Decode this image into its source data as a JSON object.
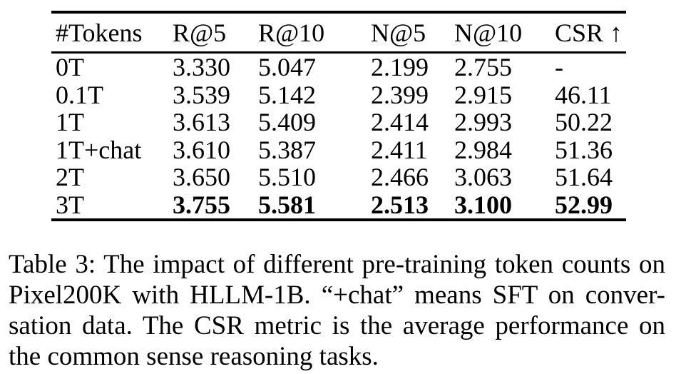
{
  "table": {
    "headers": [
      "#Tokens",
      "R@5",
      "R@10",
      "N@5",
      "N@10",
      "CSR ↑"
    ],
    "rows": [
      {
        "cells": [
          "0T",
          "3.330",
          "5.047",
          "2.199",
          "2.755",
          "-"
        ]
      },
      {
        "cells": [
          "0.1T",
          "3.539",
          "5.142",
          "2.399",
          "2.915",
          "46.11"
        ]
      },
      {
        "cells": [
          "1T",
          "3.613",
          "5.409",
          "2.414",
          "2.993",
          "50.22"
        ]
      },
      {
        "cells": [
          "1T+chat",
          "3.610",
          "5.387",
          "2.411",
          "2.984",
          "51.36"
        ]
      },
      {
        "cells": [
          "2T",
          "3.650",
          "5.510",
          "2.466",
          "3.063",
          "51.64"
        ]
      },
      {
        "cells": [
          "3T",
          "3.755",
          "5.581",
          "2.513",
          "3.100",
          "52.99"
        ]
      }
    ]
  },
  "caption": {
    "lines": [
      "Table 3: The impact of different pre-training token counts on",
      "Pixel200K with HLLM-1B. “+chat” means SFT on conver-",
      "sation data. The CSR metric is the average performance on",
      "the common sense reasoning tasks."
    ]
  },
  "colors": {
    "text": "#000000",
    "background": "#ffffff",
    "rule": "#000000"
  }
}
